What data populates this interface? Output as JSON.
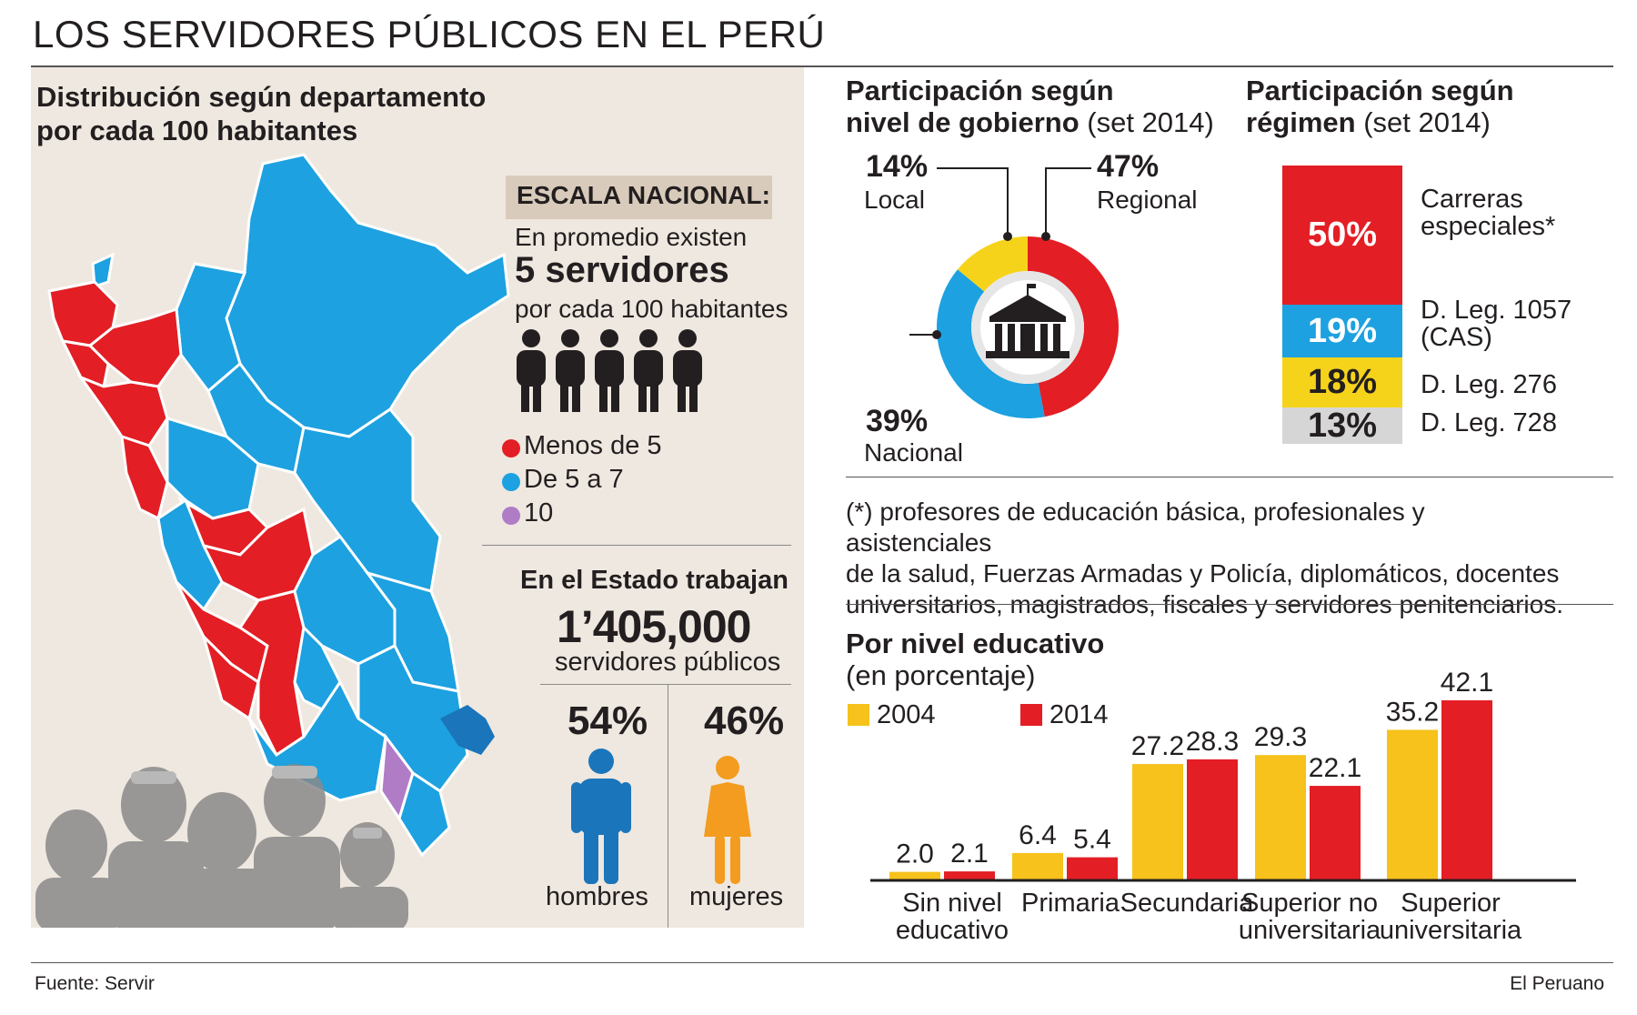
{
  "title": "LOS SERVIDORES PÚBLICOS EN EL PERÚ",
  "map": {
    "title_line1": "Distribución según departamento",
    "title_line2": "por cada 100 habitantes",
    "escala_label": "ESCALA NACIONAL:",
    "promedio_line1": "En promedio existen",
    "promedio_line2": "5 servidores",
    "promedio_line3": "por cada 100 habitantes",
    "legend": [
      {
        "label": "Menos de 5",
        "color": "#e31e24"
      },
      {
        "label": "De 5 a 7",
        "color": "#1da1e0"
      },
      {
        "label": "10",
        "color": "#b07cc6"
      }
    ],
    "estado_line1": "En el Estado trabajan",
    "estado_value": "1’405,000",
    "estado_line3": "servidores públicos",
    "hombres_pct": "54%",
    "hombres_label": "hombres",
    "mujeres_pct": "46%",
    "mujeres_label": "mujeres",
    "colors": {
      "men": "#1b75bb",
      "women": "#f39c1f",
      "people": "#8a8a8a"
    }
  },
  "gobierno": {
    "title_bold1": "Participación según",
    "title_bold2": "nivel de gobierno",
    "title_sub": "(set 2014)",
    "local_pct": "14%",
    "local_label": "Local",
    "regional_pct": "47%",
    "regional_label": "Regional",
    "nacional_pct": "39%",
    "nacional_label": "Nacional"
  },
  "regimen": {
    "title_bold1": "Participación según",
    "title_bold2": "régimen",
    "title_sub": "(set 2014)",
    "items": [
      {
        "pct": "50%",
        "label_line1": "Carreras",
        "label_line2": "especiales*",
        "color": "#e31e24"
      },
      {
        "pct": "19%",
        "label_line1": "D. Leg. 1057",
        "label_line2": "(CAS)",
        "color": "#1da1e0"
      },
      {
        "pct": "18%",
        "label_line1": "D. Leg. 276",
        "label_line2": "",
        "color": "#f6d31b"
      },
      {
        "pct": "13%",
        "label_line1": "D. Leg. 728",
        "label_line2": "",
        "color": "#d6d6d6"
      }
    ]
  },
  "note": {
    "line1": "(*) profesores de educación básica, profesionales y asistenciales",
    "line2": "de la salud, Fuerzas Armadas y Policía, diplomáticos, docentes",
    "line3": "universitarios, magistrados, fiscales y servidores penitenciarios."
  },
  "chart_data": [
    {
      "type": "pie",
      "title": "Participación según nivel de gobierno (set 2014)",
      "labels": [
        "Regional",
        "Nacional",
        "Local"
      ],
      "values": [
        47,
        39,
        14
      ],
      "colors": [
        "#e31e24",
        "#1da1e0",
        "#f6d31b"
      ]
    },
    {
      "type": "bar",
      "title": "Participación según régimen (set 2014)",
      "categories": [
        "Carreras especiales*",
        "D. Leg. 1057 (CAS)",
        "D. Leg. 276",
        "D. Leg. 728"
      ],
      "values": [
        50,
        19,
        18,
        13
      ],
      "stacked": true
    },
    {
      "type": "bar",
      "title": "Por nivel educativo",
      "subtitle": "(en porcentaje)",
      "categories": [
        {
          "line1": "Sin nivel",
          "line2": "educativo"
        },
        {
          "line1": "Primaria",
          "line2": ""
        },
        {
          "line1": "Secundaria",
          "line2": ""
        },
        {
          "line1": "Superior no",
          "line2": "universitaria"
        },
        {
          "line1": "Superior",
          "line2": "universitaria"
        }
      ],
      "series": [
        {
          "name": "2004",
          "color": "#f6c21b",
          "values": [
            2.0,
            6.4,
            27.2,
            29.3,
            35.2
          ],
          "labels": [
            "2.0",
            "6.4",
            "27.2",
            "29.3",
            "35.2"
          ]
        },
        {
          "name": "2014",
          "color": "#e31e24",
          "values": [
            2.1,
            5.4,
            28.3,
            22.1,
            42.1
          ],
          "labels": [
            "2.1",
            "5.4",
            "28.3",
            "22.1",
            "42.1"
          ]
        }
      ],
      "ylim": [
        0,
        42.1
      ]
    }
  ],
  "footer": {
    "source": "Fuente: Servir",
    "brand": "El Peruano"
  }
}
